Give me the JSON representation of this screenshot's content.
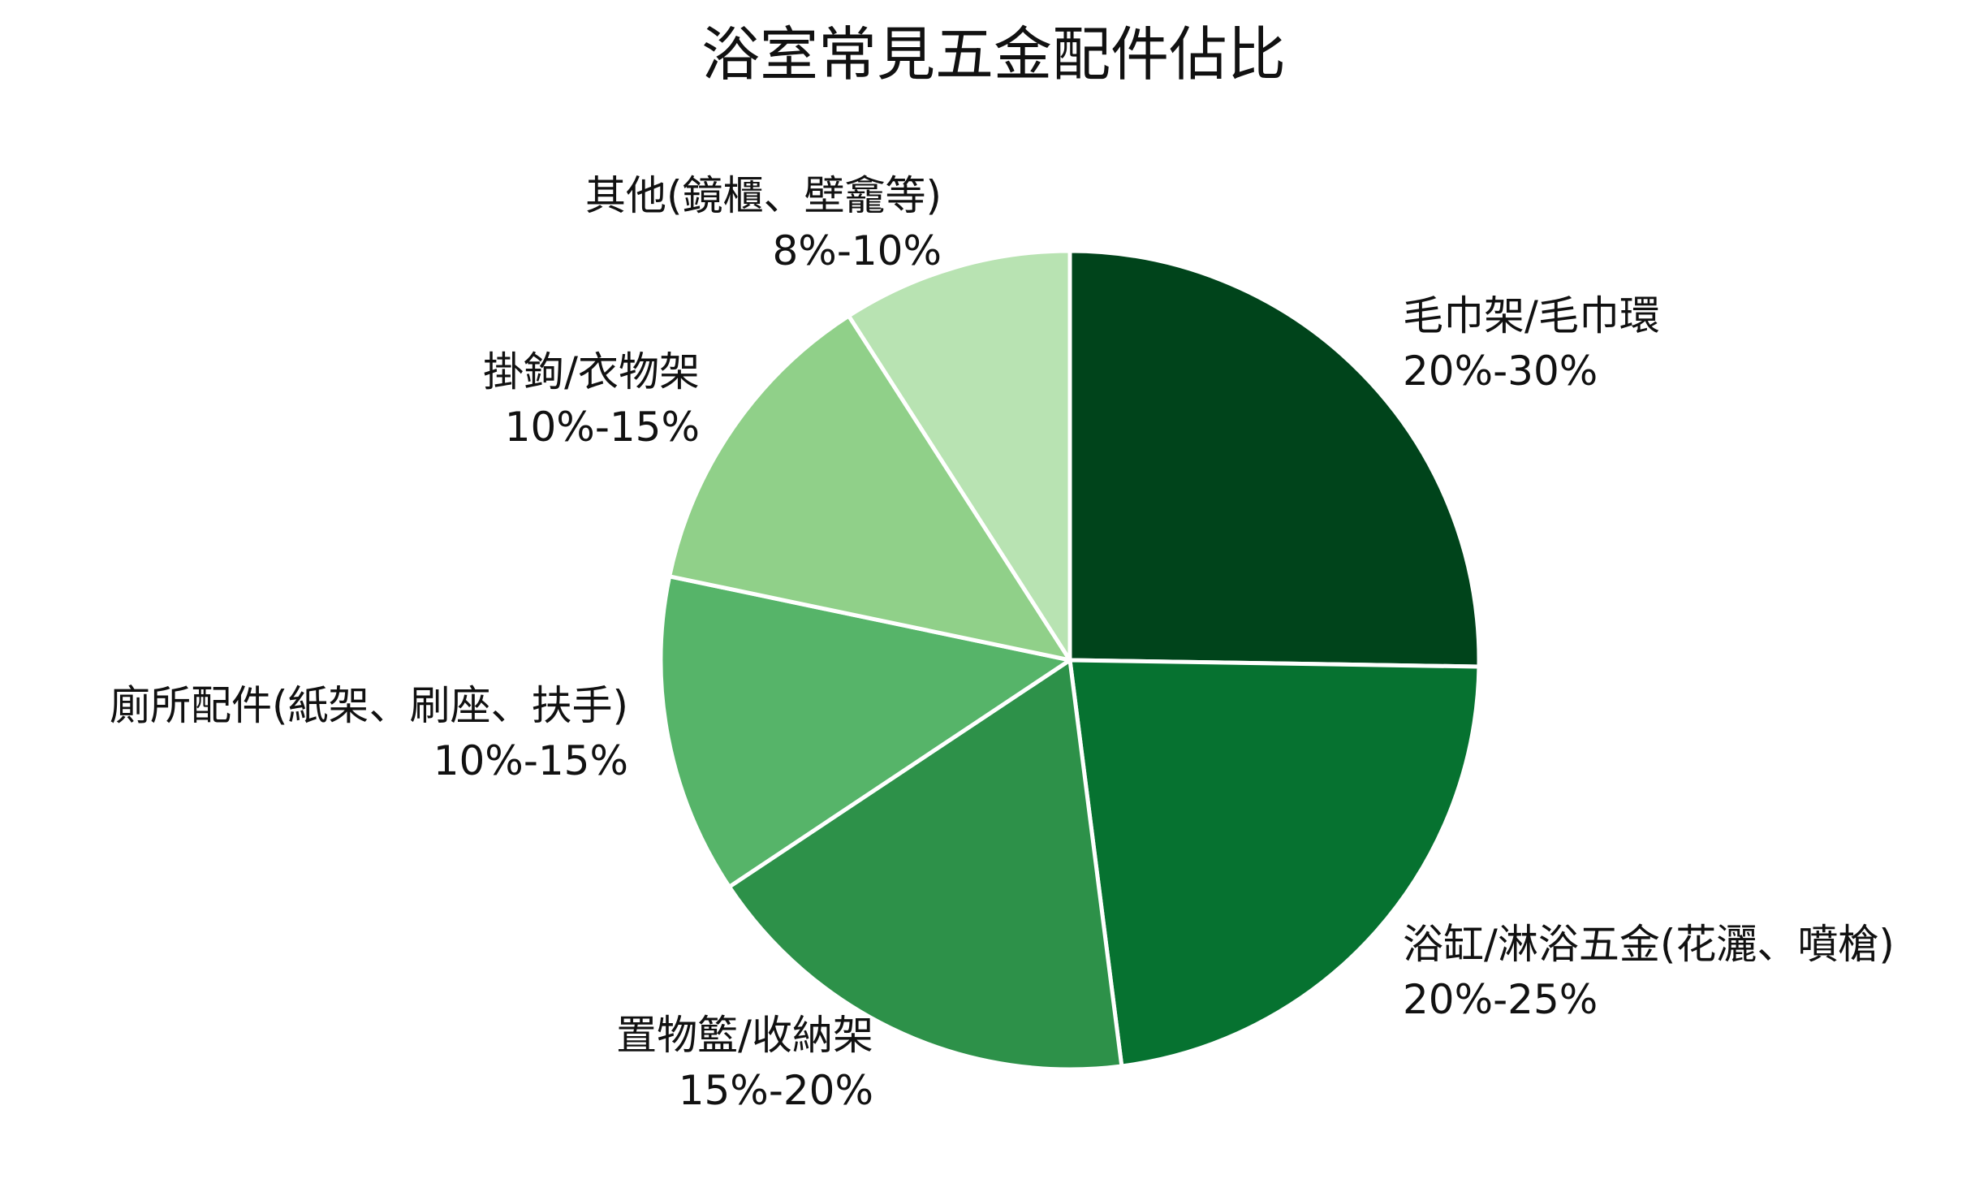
{
  "chart_data": {
    "type": "pie",
    "title": "浴室常見五金配件佔比",
    "categories": [
      "毛巾架/毛巾環",
      "浴缸/淋浴五金(花灑、噴槍)",
      "置物籃/收納架",
      "廁所配件(紙架、刷座、扶手)",
      "掛鉤/衣物架",
      "其他(鏡櫃、壁龕等)"
    ],
    "values": [
      25,
      22.5,
      17.5,
      12.5,
      12.5,
      9
    ],
    "value_labels": [
      "20%-30%",
      "20%-25%",
      "15%-20%",
      "10%-15%",
      "10%-15%",
      "8%-10%"
    ],
    "colors": [
      "#00441b",
      "#067230",
      "#2d9149",
      "#56b469",
      "#90d089",
      "#b8e3b2"
    ],
    "start_angle_deg": 90,
    "direction": "clockwise",
    "slice_border_color": "#ffffff",
    "legend": "none"
  }
}
